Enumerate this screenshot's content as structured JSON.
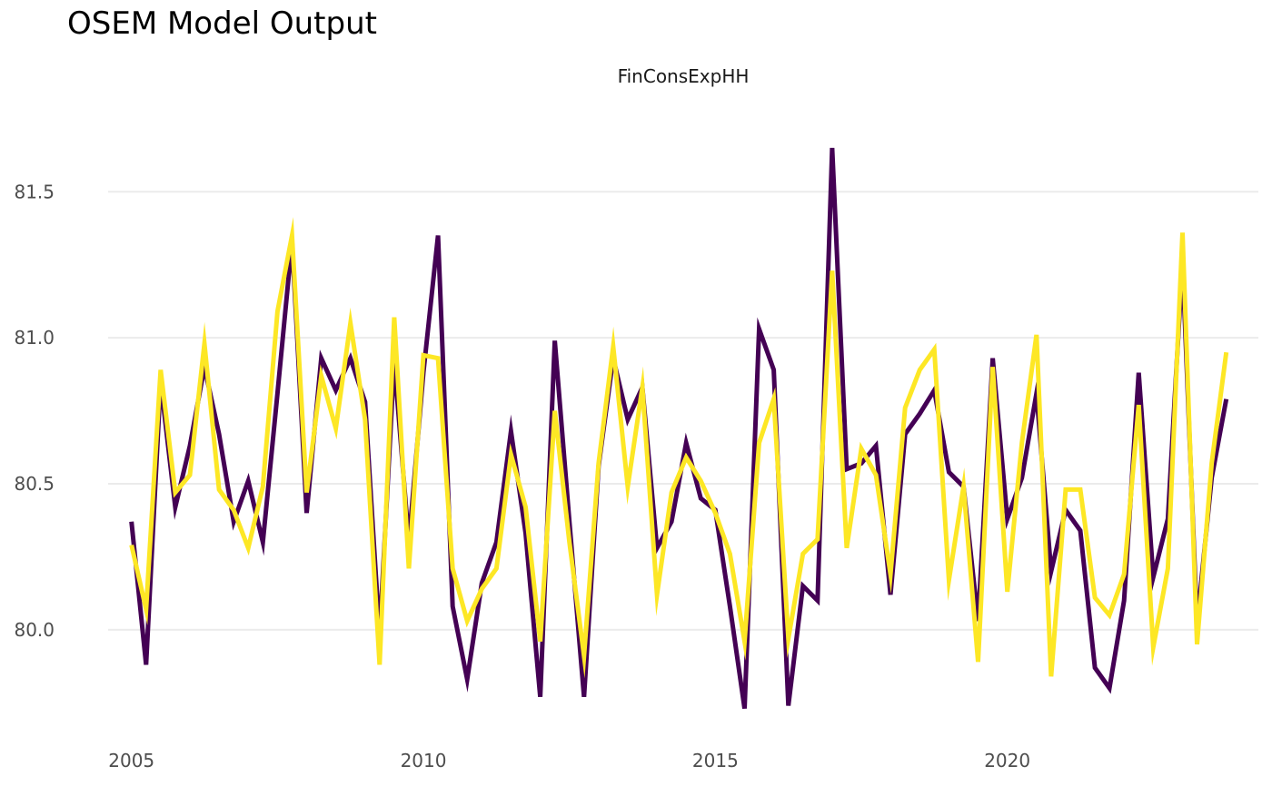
{
  "title": "OSEM Model Output",
  "chart_data": {
    "type": "line",
    "title": "OSEM Model Output",
    "facet_label": "FinConsExpHH",
    "xlabel": "",
    "ylabel": "",
    "x_ticks": [
      "2005",
      "2010",
      "2015",
      "2020"
    ],
    "y_ticks": [
      "80.0",
      "80.5",
      "81.0",
      "81.5"
    ],
    "xlim": [
      2004.6,
      2024.3
    ],
    "ylim": [
      79.67,
      81.79
    ],
    "grid": true,
    "legend": "none",
    "x": [
      2005.0,
      2005.25,
      2005.5,
      2005.75,
      2006.0,
      2006.25,
      2006.5,
      2006.75,
      2007.0,
      2007.25,
      2007.5,
      2007.75,
      2008.0,
      2008.25,
      2008.5,
      2008.75,
      2009.0,
      2009.25,
      2009.5,
      2009.75,
      2010.0,
      2010.25,
      2010.5,
      2010.75,
      2011.0,
      2011.25,
      2011.5,
      2011.75,
      2012.0,
      2012.25,
      2012.5,
      2012.75,
      2013.0,
      2013.25,
      2013.5,
      2013.75,
      2014.0,
      2014.25,
      2014.5,
      2014.75,
      2015.0,
      2015.25,
      2015.5,
      2015.75,
      2016.0,
      2016.25,
      2016.5,
      2016.75,
      2017.0,
      2017.25,
      2017.5,
      2017.75,
      2018.0,
      2018.25,
      2018.5,
      2018.75,
      2019.0,
      2019.25,
      2019.5,
      2019.75,
      2020.0,
      2020.25,
      2020.5,
      2020.75,
      2021.0,
      2021.25,
      2021.5,
      2021.75,
      2022.0,
      2022.25,
      2022.5,
      2022.75,
      2023.0,
      2023.25,
      2023.5,
      2023.75
    ],
    "series": [
      {
        "color": "#440154",
        "values": [
          80.37,
          79.88,
          80.85,
          80.42,
          80.63,
          80.9,
          80.67,
          80.37,
          80.51,
          80.3,
          80.81,
          81.33,
          80.4,
          80.93,
          80.82,
          80.93,
          80.78,
          79.98,
          80.92,
          80.3,
          80.88,
          81.35,
          80.08,
          79.83,
          80.16,
          80.3,
          80.68,
          80.33,
          79.77,
          80.99,
          80.37,
          79.77,
          80.56,
          80.93,
          80.72,
          80.83,
          80.28,
          80.37,
          80.64,
          80.45,
          80.41,
          80.08,
          79.73,
          81.03,
          80.89,
          79.74,
          80.15,
          80.1,
          81.65,
          80.55,
          80.57,
          80.63,
          80.12,
          80.67,
          80.74,
          80.82,
          80.54,
          80.49,
          80.03,
          80.93,
          80.38,
          80.52,
          80.81,
          80.2,
          80.41,
          80.34,
          79.87,
          79.8,
          80.1,
          80.88,
          80.18,
          80.38,
          81.26,
          80.02,
          80.52,
          80.79
        ]
      },
      {
        "color": "#fde725",
        "values": [
          80.29,
          80.07,
          80.89,
          80.47,
          80.53,
          80.98,
          80.48,
          80.41,
          80.28,
          80.49,
          81.09,
          81.35,
          80.47,
          80.87,
          80.69,
          81.05,
          80.72,
          79.88,
          81.07,
          80.21,
          80.94,
          80.93,
          80.21,
          80.03,
          80.14,
          80.21,
          80.6,
          80.42,
          79.96,
          80.75,
          80.3,
          79.91,
          80.57,
          80.97,
          80.49,
          80.83,
          80.12,
          80.47,
          80.59,
          80.51,
          80.4,
          80.26,
          79.96,
          80.64,
          80.79,
          79.97,
          80.26,
          80.31,
          81.23,
          80.28,
          80.62,
          80.53,
          80.19,
          80.76,
          80.89,
          80.96,
          80.17,
          80.49,
          79.89,
          80.9,
          80.13,
          80.64,
          81.01,
          79.84,
          80.48,
          80.48,
          80.11,
          80.05,
          80.19,
          80.77,
          79.94,
          80.21,
          81.36,
          79.95,
          80.57,
          80.95
        ]
      }
    ]
  }
}
